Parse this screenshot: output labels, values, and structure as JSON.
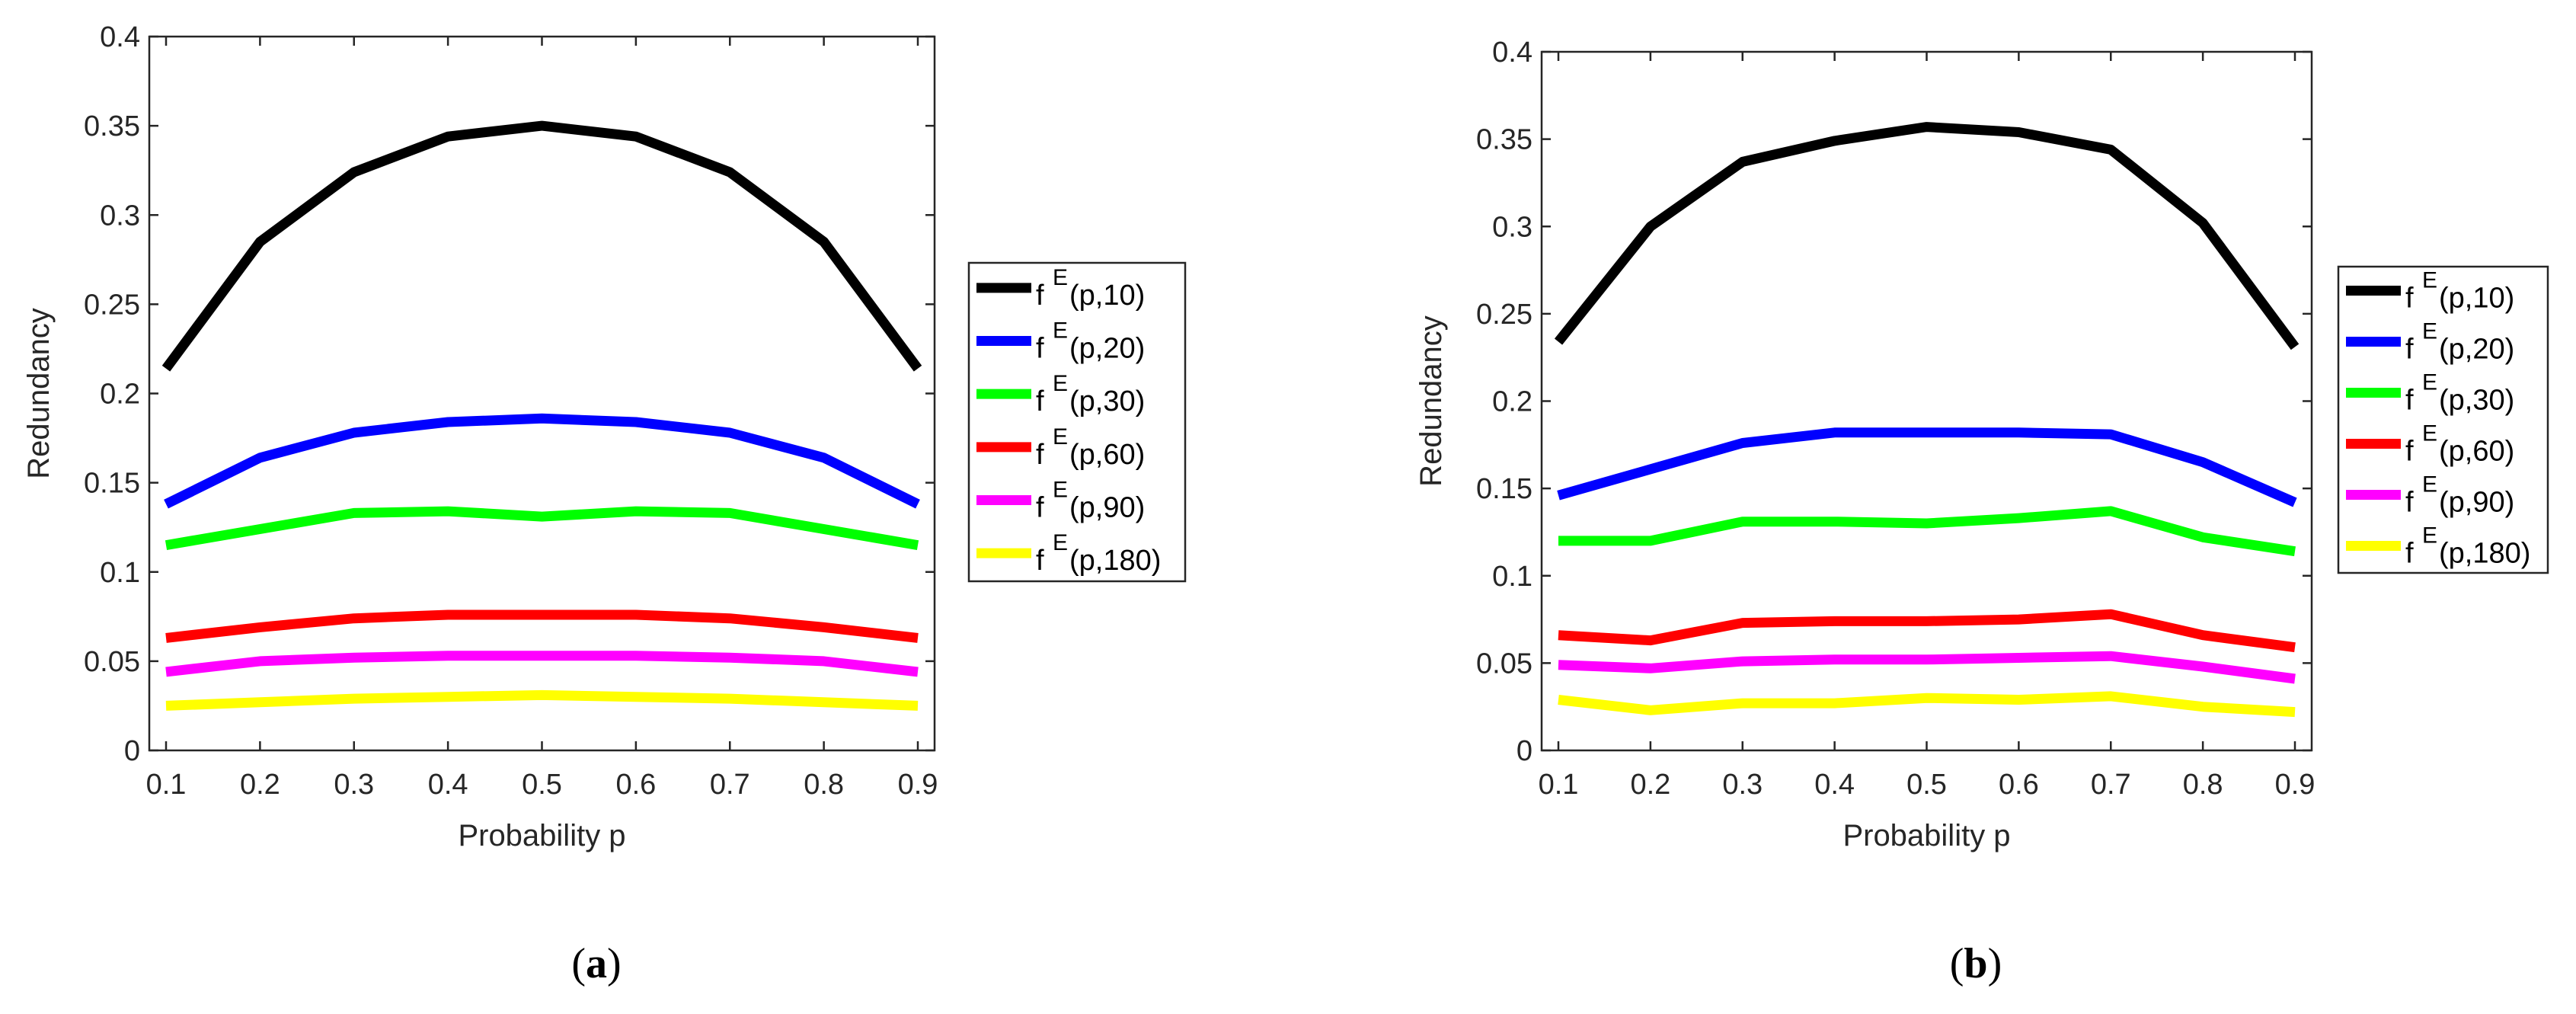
{
  "chart_data": [
    {
      "type": "line",
      "caption_letter": "a",
      "x": [
        0.1,
        0.2,
        0.3,
        0.4,
        0.5,
        0.6,
        0.7,
        0.8,
        0.9
      ],
      "xlim": [
        0.1,
        0.9
      ],
      "ylim": [
        0,
        0.4
      ],
      "xticks": [
        "0.1",
        "0.2",
        "0.3",
        "0.4",
        "0.5",
        "0.6",
        "0.7",
        "0.8",
        "0.9"
      ],
      "yticks": [
        "0",
        "0.05",
        "0.1",
        "0.15",
        "0.2",
        "0.25",
        "0.3",
        "0.35",
        "0.4"
      ],
      "xlabel": "Probability p",
      "ylabel": "Redundancy",
      "grid": false,
      "legend_position": "right",
      "series": [
        {
          "name": "f",
          "sup": "E",
          "args": "(p,10)",
          "color": "#000000",
          "values": [
            0.214,
            0.285,
            0.324,
            0.344,
            0.35,
            0.344,
            0.324,
            0.285,
            0.214
          ]
        },
        {
          "name": "f",
          "sup": "E",
          "args": "(p,20)",
          "color": "#0000ff",
          "values": [
            0.138,
            0.164,
            0.178,
            0.184,
            0.186,
            0.184,
            0.178,
            0.164,
            0.138
          ]
        },
        {
          "name": "f",
          "sup": "E",
          "args": "(p,30)",
          "color": "#00ff00",
          "values": [
            0.115,
            0.124,
            0.133,
            0.134,
            0.131,
            0.134,
            0.133,
            0.124,
            0.115
          ]
        },
        {
          "name": "f",
          "sup": "E",
          "args": "(p,60)",
          "color": "#ff0000",
          "values": [
            0.063,
            0.069,
            0.074,
            0.076,
            0.076,
            0.076,
            0.074,
            0.069,
            0.063
          ]
        },
        {
          "name": "f",
          "sup": "E",
          "args": "(p,90)",
          "color": "#ff00ff",
          "values": [
            0.044,
            0.05,
            0.052,
            0.053,
            0.053,
            0.053,
            0.052,
            0.05,
            0.044
          ]
        },
        {
          "name": "f",
          "sup": "E",
          "args": "(p,180)",
          "color": "#ffff00",
          "values": [
            0.025,
            0.027,
            0.029,
            0.03,
            0.031,
            0.03,
            0.029,
            0.027,
            0.025
          ]
        }
      ]
    },
    {
      "type": "line",
      "caption_letter": "b",
      "x": [
        0.1,
        0.2,
        0.3,
        0.4,
        0.5,
        0.6,
        0.7,
        0.8,
        0.9
      ],
      "xlim": [
        0.1,
        0.9
      ],
      "ylim": [
        0,
        0.4
      ],
      "xticks": [
        "0.1",
        "0.2",
        "0.3",
        "0.4",
        "0.5",
        "0.6",
        "0.7",
        "0.8",
        "0.9"
      ],
      "yticks": [
        "0",
        "0.05",
        "0.1",
        "0.15",
        "0.2",
        "0.25",
        "0.3",
        "0.35",
        "0.4"
      ],
      "xlabel": "Probability p",
      "ylabel": "Redundancy",
      "grid": false,
      "legend_position": "right",
      "series": [
        {
          "name": "f",
          "sup": "E",
          "args": "(p,10)",
          "color": "#000000",
          "values": [
            0.234,
            0.3,
            0.337,
            0.349,
            0.357,
            0.354,
            0.344,
            0.302,
            0.231
          ]
        },
        {
          "name": "f",
          "sup": "E",
          "args": "(p,20)",
          "color": "#0000ff",
          "values": [
            0.146,
            0.161,
            0.176,
            0.182,
            0.182,
            0.182,
            0.181,
            0.165,
            0.142
          ]
        },
        {
          "name": "f",
          "sup": "E",
          "args": "(p,30)",
          "color": "#00ff00",
          "values": [
            0.12,
            0.12,
            0.131,
            0.131,
            0.13,
            0.133,
            0.137,
            0.122,
            0.114
          ]
        },
        {
          "name": "f",
          "sup": "E",
          "args": "(p,60)",
          "color": "#ff0000",
          "values": [
            0.066,
            0.063,
            0.073,
            0.074,
            0.074,
            0.075,
            0.078,
            0.066,
            0.059
          ]
        },
        {
          "name": "f",
          "sup": "E",
          "args": "(p,90)",
          "color": "#ff00ff",
          "values": [
            0.049,
            0.047,
            0.051,
            0.052,
            0.052,
            0.053,
            0.054,
            0.048,
            0.041
          ]
        },
        {
          "name": "f",
          "sup": "E",
          "args": "(p,180)",
          "color": "#ffff00",
          "values": [
            0.029,
            0.023,
            0.027,
            0.027,
            0.03,
            0.029,
            0.031,
            0.025,
            0.022
          ]
        }
      ]
    }
  ]
}
